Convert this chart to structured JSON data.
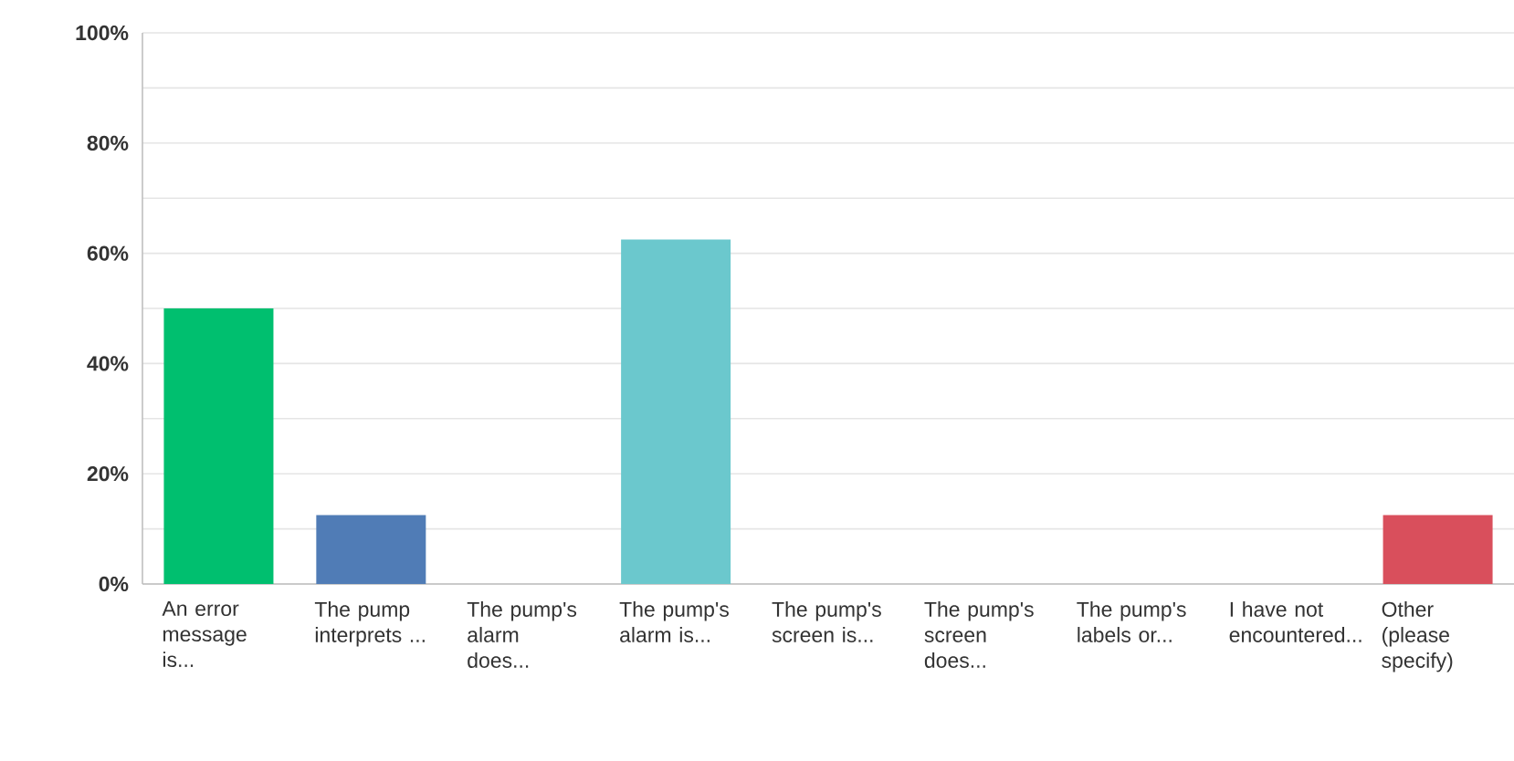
{
  "chart_data": {
    "type": "bar",
    "categories": [
      "An error message is...",
      "The pump interprets ...",
      "The pump's alarm does...",
      "The pump's alarm is...",
      "The pump's screen is...",
      "The pump's screen does...",
      "The pump's labels or...",
      "I have not encountered...",
      "Other (please specify)"
    ],
    "values": [
      50,
      12.5,
      0,
      62.5,
      0,
      0,
      0,
      0,
      12.5
    ],
    "colors": [
      "#00bf6f",
      "#507cb6",
      "#6bc8cd",
      "#6bc8cd",
      "#f9be00",
      "#7d8fc4",
      "#a7ce50",
      "#f05b24",
      "#d94f5c"
    ],
    "ylim": [
      0,
      100
    ],
    "yticks": [
      {
        "value": 0,
        "label": "0%"
      },
      {
        "value": 10,
        "label": null
      },
      {
        "value": 20,
        "label": "20%"
      },
      {
        "value": 30,
        "label": null
      },
      {
        "value": 40,
        "label": "40%"
      },
      {
        "value": 50,
        "label": null
      },
      {
        "value": 60,
        "label": "60%"
      },
      {
        "value": 70,
        "label": null
      },
      {
        "value": 80,
        "label": "80%"
      },
      {
        "value": 90,
        "label": null
      },
      {
        "value": 100,
        "label": "100%"
      }
    ],
    "grid": "y"
  }
}
